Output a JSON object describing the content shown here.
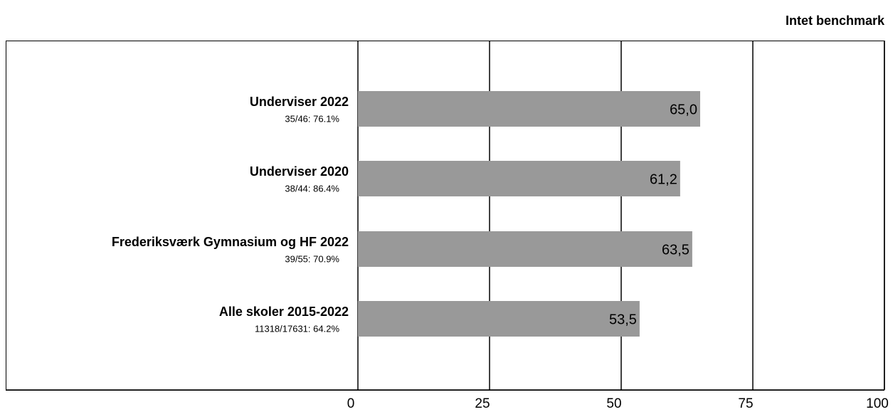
{
  "chart_data": {
    "type": "bar",
    "orientation": "horizontal",
    "annotation": "Intet benchmark",
    "categories": [
      "Underviser 2022",
      "Underviser 2020",
      "Frederiksværk Gymnasium og HF 2022",
      "Alle skoler 2015-2022"
    ],
    "category_notes": [
      "35/46: 76.1%",
      "38/44: 86.4%",
      "39/55: 70.9%",
      "11318/17631: 64.2%"
    ],
    "values": [
      65.0,
      61.2,
      63.5,
      53.5
    ],
    "value_labels": [
      "65,0",
      "61,2",
      "63,5",
      "53,5"
    ],
    "color": "#999999",
    "xlim": [
      0,
      100
    ],
    "xticks": [
      0,
      25,
      50,
      75,
      100
    ],
    "grid": true
  }
}
